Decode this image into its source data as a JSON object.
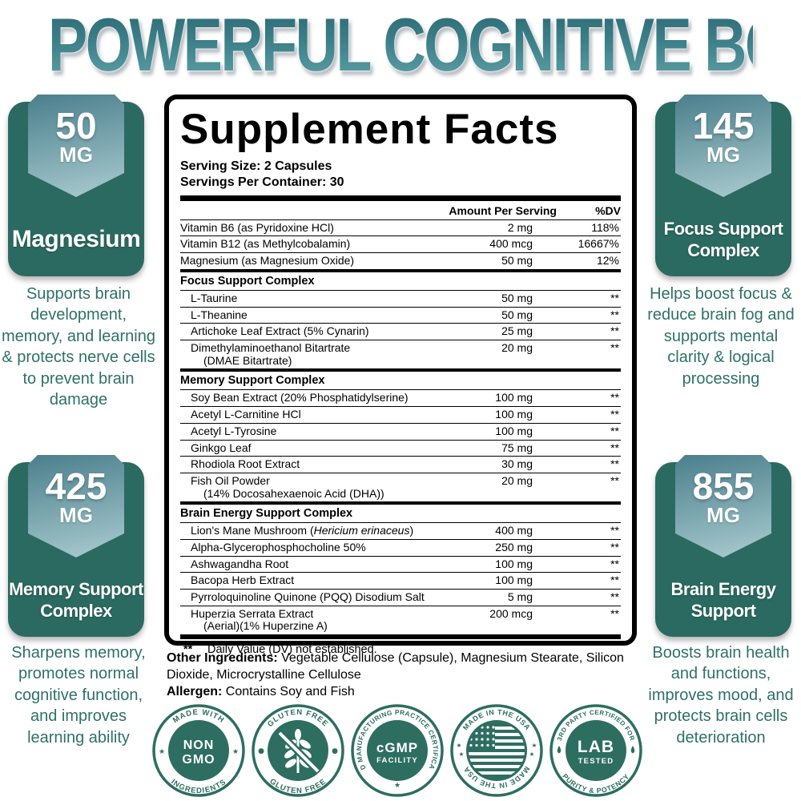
{
  "title": "POWERFUL COGNITIVE BOOST",
  "colors": {
    "teal_dark": "#2b6a61",
    "teal_stamp": "#2d6e60",
    "teal_text": "#2e7167",
    "ribbon_light": "#abccd1",
    "ribbon_dark": "#4a7f8d",
    "title_teal": "#3c7f88"
  },
  "badges": {
    "top_left": {
      "amount": "50",
      "unit": "MG",
      "name": "Magnesium",
      "description": "Supports brain development, memory, and learning & protects nerve cells to prevent brain damage"
    },
    "top_right": {
      "amount": "145",
      "unit": "MG",
      "name": "Focus Support Complex",
      "description": "Helps boost focus & reduce brain fog and supports mental clarity & logical processing"
    },
    "bottom_left": {
      "amount": "425",
      "unit": "MG",
      "name": "Memory Support Complex",
      "description": "Sharpens memory, promotes normal cognitive function, and improves learning ability"
    },
    "bottom_right": {
      "amount": "855",
      "unit": "MG",
      "name": "Brain Energy Support",
      "description": "Boosts brain health and functions, improves mood, and protects brain cells deterioration"
    }
  },
  "panel": {
    "title": "Supplement Facts",
    "serving_size": "Serving Size: 2 Capsules",
    "servings_per_container": "Servings Per Container: 30",
    "col_amount": "Amount Per Serving",
    "col_dv": "%DV",
    "rows": [
      {
        "name": "Vitamin B6 (as Pyridoxine HCl)",
        "amount": "2 mg",
        "dv": "118%"
      },
      {
        "name": "Vitamin B12 (as Methylcobalamin)",
        "amount": "400 mcg",
        "dv": "16667%"
      },
      {
        "name": "Magnesium (as Magnesium Oxide)",
        "amount": "50 mg",
        "dv": "12%"
      },
      {
        "section": "Focus Support Complex"
      },
      {
        "name": "L-Taurine",
        "amount": "50 mg",
        "dv": "**",
        "indent": true
      },
      {
        "name": "L-Theanine",
        "amount": "50 mg",
        "dv": "**",
        "indent": true
      },
      {
        "name": "Artichoke Leaf Extract (5% Cynarin)",
        "amount": "25 mg",
        "dv": "**",
        "indent": true
      },
      {
        "name": "Dimethylaminoethanol Bitartrate",
        "name2": "(DMAE Bitartrate)",
        "amount": "20 mg",
        "dv": "**",
        "indent": true
      },
      {
        "section": "Memory Support Complex"
      },
      {
        "name": "Soy Bean Extract (20% Phosphatidylserine)",
        "amount": "100 mg",
        "dv": "**",
        "indent": true
      },
      {
        "name": "Acetyl L-Carnitine HCl",
        "amount": "100 mg",
        "dv": "**",
        "indent": true
      },
      {
        "name": "Acetyl L-Tyrosine",
        "amount": "100 mg",
        "dv": "**",
        "indent": true
      },
      {
        "name": "Ginkgo Leaf",
        "amount": "75 mg",
        "dv": "**",
        "indent": true
      },
      {
        "name": "Rhodiola Root Extract",
        "amount": "30 mg",
        "dv": "**",
        "indent": true
      },
      {
        "name": "Fish Oil Powder",
        "name2": "(14% Docosahexaenoic Acid (DHA))",
        "amount": "20 mg",
        "dv": "**",
        "indent": true
      },
      {
        "section": "Brain Energy Support Complex"
      },
      {
        "name": "Lion's Mane Mushroom (",
        "name_italic": "Hericium erinaceus",
        "name_post": ")",
        "amount": "400 mg",
        "dv": "**",
        "indent": true
      },
      {
        "name": "Alpha-Glycerophosphocholine 50%",
        "amount": "250 mg",
        "dv": "**",
        "indent": true
      },
      {
        "name": "Ashwagandha Root",
        "amount": "100 mg",
        "dv": "**",
        "indent": true
      },
      {
        "name": "Bacopa Herb Extract",
        "amount": "100 mg",
        "dv": "**",
        "indent": true
      },
      {
        "name": "Pyrroloquinoline Quinone (PQQ) Disodium Salt",
        "amount": "5 mg",
        "dv": "**",
        "indent": true
      },
      {
        "name": "Huperzia Serrata Extract",
        "name2": "(Aerial)(1% Huperzine A)",
        "amount": "200 mcg",
        "dv": "**",
        "indent": true
      }
    ],
    "footnote_symbol": "**",
    "footnote": "Daily Value (DV) not established."
  },
  "other_ingredients_label": "Other Ingredients:",
  "other_ingredients": "Vegetable Cellulose (Capsule), Magnesium Stearate, Silicon Dioxide, Microcrystalline Cellulose",
  "allergen_label": "Allergen:",
  "allergen": "Contains Soy and Fish",
  "stamps": [
    {
      "ring_top": "MADE WITH",
      "ring_bottom": "INGREDIENTS",
      "line1": "NON",
      "line2": "GMO",
      "side_symbol": "★"
    },
    {
      "ring_top": "GLUTEN FREE",
      "ring_bottom": "GLUTEN FREE",
      "icon": "wheat-crossed",
      "side_symbol": "●"
    },
    {
      "ring_text": "GOOD MANUFACTURING PRACTICE CERTIFICATION",
      "line1": "cGMP",
      "line2": "FACILITY",
      "bottom_symbol": "★"
    },
    {
      "ring_top": "MADE IN THE USA",
      "ring_bottom": "MADE IN THE USA",
      "icon": "us-flag",
      "side_symbol": "★"
    },
    {
      "ring_top": "3RD PARTY CERTIFIED FOR",
      "ring_bottom": "PURITY & POTENCY",
      "line1": "LAB",
      "line2": "TESTED",
      "icon": "drop"
    }
  ]
}
